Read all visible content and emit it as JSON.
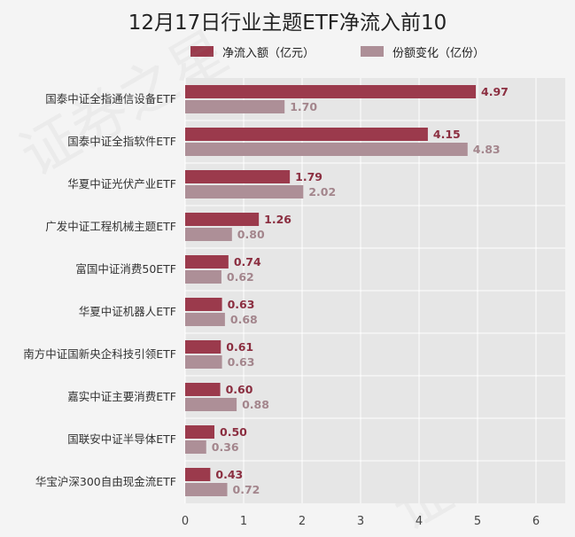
{
  "title": "12月17日行业主题ETF净流入前10",
  "legend": [
    {
      "label": "净流入额（亿元）",
      "color": "#9b3a4c"
    },
    {
      "label": "份额变化（亿份）",
      "color": "#ad8f97"
    }
  ],
  "chart_data": {
    "type": "bar",
    "orientation": "horizontal",
    "title": "12月17日行业主题ETF净流入前10",
    "categories": [
      "国泰中证全指通信设备ETF",
      "国泰中证全指软件ETF",
      "华夏中证光伏产业ETF",
      "广发中证工程机械主题ETF",
      "富国中证消费50ETF",
      "华夏中证机器人ETF",
      "南方中证国新央企科技引领ETF",
      "嘉实中证主要消费ETF",
      "国联安中证半导体ETF",
      "华宝沪深300自由现金流ETF"
    ],
    "series": [
      {
        "name": "净流入额（亿元）",
        "color": "#9b3a4c",
        "label_color": "#8b2e40",
        "values": [
          4.97,
          4.15,
          1.79,
          1.26,
          0.74,
          0.63,
          0.61,
          0.6,
          0.5,
          0.43
        ]
      },
      {
        "name": "份额变化（亿份）",
        "color": "#ad8f97",
        "label_color": "#a3858c",
        "values": [
          1.7,
          4.83,
          2.02,
          0.8,
          0.62,
          0.68,
          0.63,
          0.88,
          0.36,
          0.72
        ]
      }
    ],
    "xlim": [
      0,
      6.5
    ],
    "xticks": [
      "0",
      "1",
      "2",
      "3",
      "4",
      "5",
      "6"
    ],
    "grid": true,
    "legend_position": "top"
  }
}
